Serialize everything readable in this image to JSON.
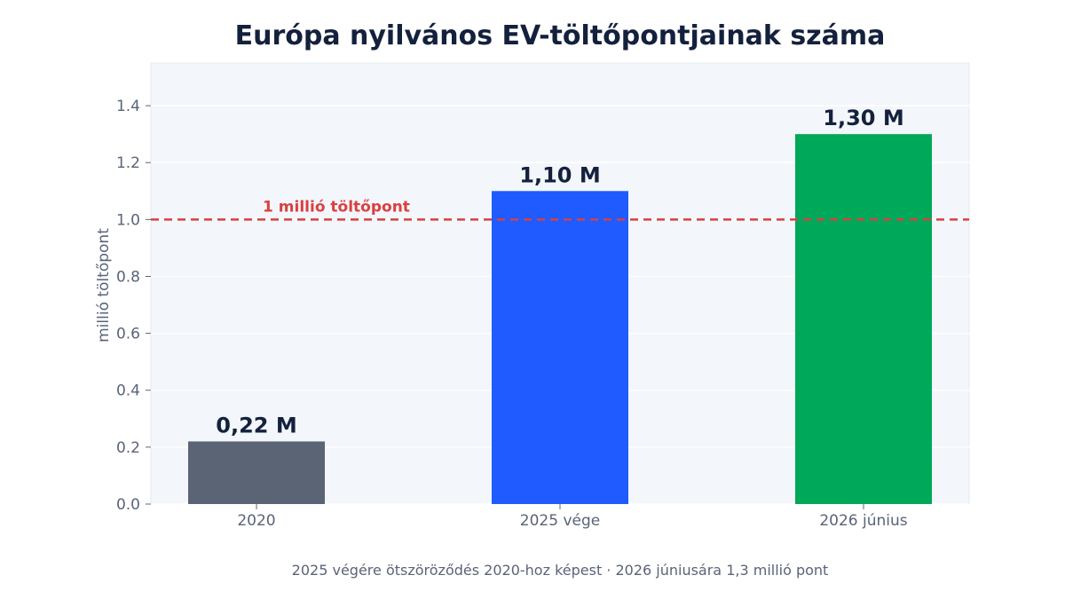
{
  "chart_data": {
    "type": "bar",
    "title": "Európa nyilvános EV-töltőpontjainak száma",
    "xlabel": "",
    "ylabel": "millió töltőpont",
    "ylim": [
      0,
      1.55
    ],
    "yticks": [
      0.0,
      0.2,
      0.4,
      0.6,
      0.8,
      1.0,
      1.2,
      1.4
    ],
    "ytick_labels": [
      "0.0",
      "0.2",
      "0.4",
      "0.6",
      "0.8",
      "1.0",
      "1.2",
      "1.4"
    ],
    "categories": [
      "2020",
      "2025 vége",
      "2026 június"
    ],
    "values": [
      0.22,
      1.1,
      1.3
    ],
    "data_labels": [
      "0,22 M",
      "1,10 M",
      "1,30 M"
    ],
    "bar_colors": [
      "#5a6474",
      "#1f5bff",
      "#00a859"
    ],
    "reference_line": {
      "value": 1.0,
      "label": "1 millió töltőpont",
      "color": "#d94040"
    },
    "grid": true,
    "legend": "none",
    "caption": "2025 végére ötszöröződés 2020-hoz képest · 2026 júniusára 1,3 millió pont"
  }
}
